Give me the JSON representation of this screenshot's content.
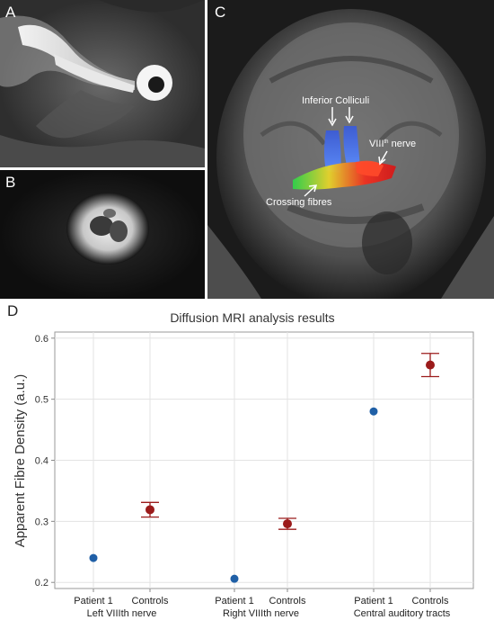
{
  "panels": {
    "a_label": "A",
    "b_label": "B",
    "c_label": "C",
    "d_label": "D"
  },
  "tractography": {
    "annotation_colliculi": "Inferior Colliculi",
    "annotation_nerve_main": "VIII",
    "annotation_nerve_sup": "th",
    "annotation_nerve_suffix": " nerve",
    "annotation_crossing": "Crossing fibres"
  },
  "colors": {
    "patient": "#1f5fa6",
    "controls": "#9b1b1b",
    "grid": "#e3e3e3",
    "axis": "#8a8a8a"
  },
  "chart_data": {
    "type": "scatter",
    "title": "Diffusion MRI analysis results",
    "xlabel": "",
    "ylabel": "Apparent Fibre Density (a.u.)",
    "ylim": [
      0.19,
      0.61
    ],
    "yticks": [
      0.2,
      0.3,
      0.4,
      0.5,
      0.6
    ],
    "grid": true,
    "groups": [
      {
        "name": "Left VIIIth nerve",
        "categories": [
          "Patient 1",
          "Controls"
        ],
        "patient_value": 0.24,
        "controls": {
          "mean": 0.319,
          "lower": 0.307,
          "upper": 0.331
        }
      },
      {
        "name": "Right VIIIth nerve",
        "categories": [
          "Patient 1",
          "Controls"
        ],
        "patient_value": 0.206,
        "controls": {
          "mean": 0.296,
          "lower": 0.287,
          "upper": 0.305
        }
      },
      {
        "name": "Central auditory tracts",
        "categories": [
          "Patient 1",
          "Controls"
        ],
        "patient_value": 0.48,
        "controls": {
          "mean": 0.556,
          "lower": 0.537,
          "upper": 0.575
        }
      }
    ]
  }
}
